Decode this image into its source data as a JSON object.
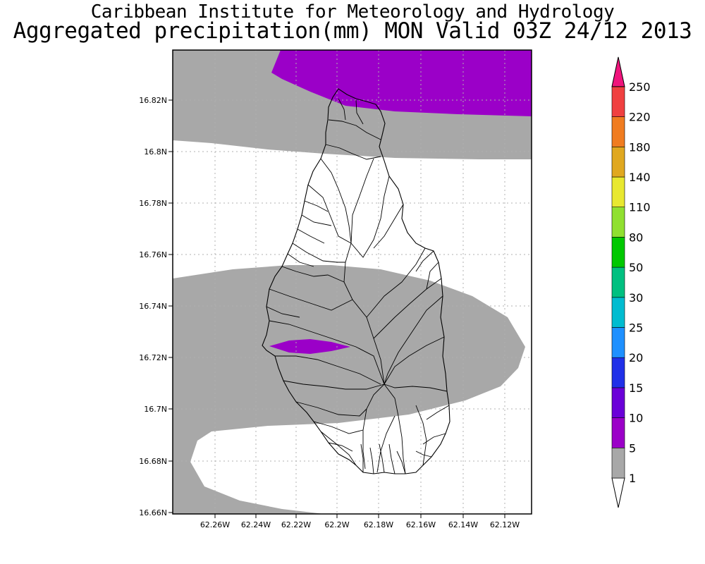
{
  "header": {
    "institute": "Caribbean Institute for Meteorology and Hydrology",
    "product": "Aggregated precipitation(mm) MON Valid 03Z 24/12 2013"
  },
  "map": {
    "lat_ticks": [
      "16.82N",
      "16.8N",
      "16.78N",
      "16.76N",
      "16.74N",
      "16.72N",
      "16.7N",
      "16.68N",
      "16.66N"
    ],
    "lon_ticks": [
      "62.26W",
      "62.24W",
      "62.22W",
      "62.2W",
      "62.18W",
      "62.16W",
      "62.14W",
      "62.12W"
    ],
    "colors": {
      "gray": "#a8a8a8",
      "purple": "#9b00c8",
      "coast": "#000000",
      "grid": "#b0b0b0"
    }
  },
  "colorbar": {
    "labels": [
      "1",
      "5",
      "10",
      "15",
      "20",
      "25",
      "30",
      "50",
      "80",
      "110",
      "140",
      "180",
      "220",
      "250"
    ],
    "colors": [
      "#a8a8a8",
      "#9b00c8",
      "#6a00d8",
      "#2030e8",
      "#1e90ff",
      "#00bcd0",
      "#00c080",
      "#00c800",
      "#90e030",
      "#e8e830",
      "#e0a820",
      "#f07c20",
      "#f04040",
      "#f0147c"
    ]
  }
}
